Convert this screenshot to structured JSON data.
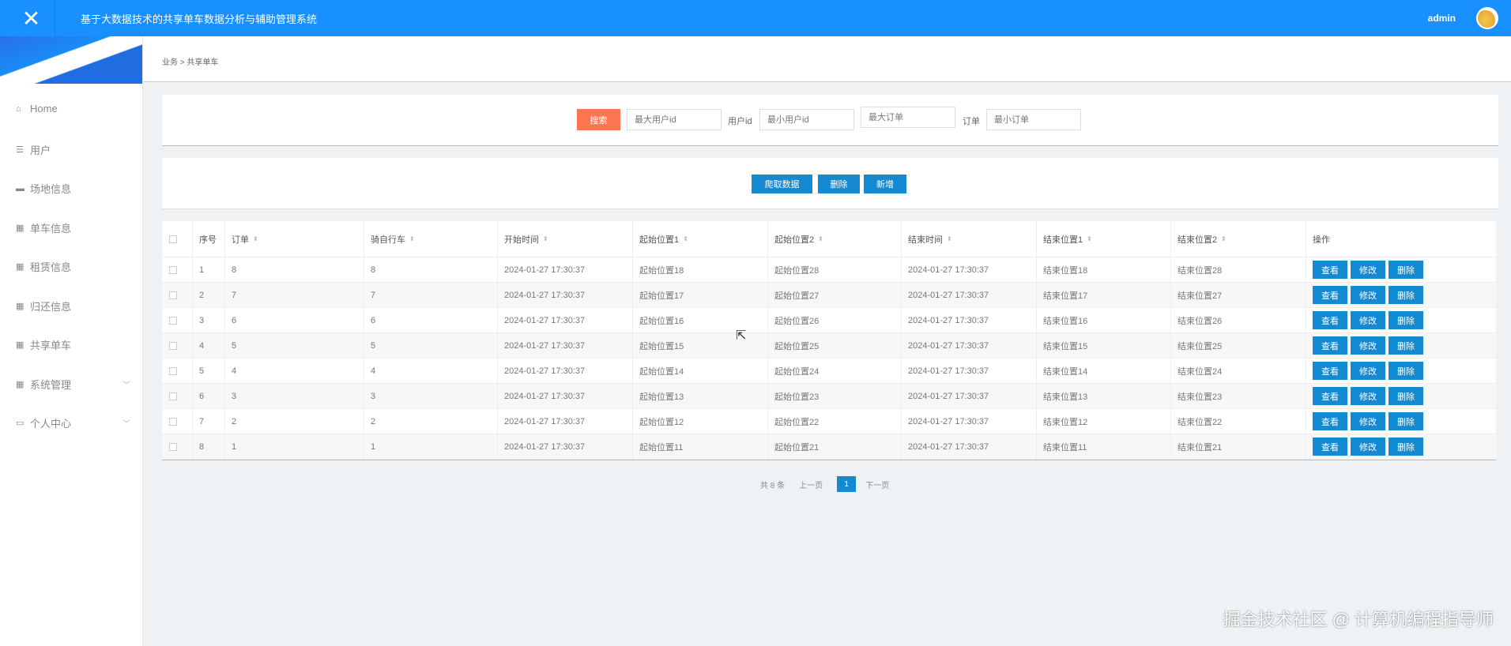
{
  "header": {
    "title": "基于大数据技术的共享单车数据分析与辅助管理系统",
    "user": "admin",
    "close_icon": "close-icon"
  },
  "sidebar": {
    "items": [
      {
        "label": "Home",
        "icon": "home-icon"
      },
      {
        "label": "用户",
        "icon": "sliders-icon"
      },
      {
        "label": "场地信息",
        "icon": "ticket-icon"
      },
      {
        "label": "单车信息",
        "icon": "grid-icon"
      },
      {
        "label": "租赁信息",
        "icon": "grid-icon"
      },
      {
        "label": "归还信息",
        "icon": "grid-icon"
      },
      {
        "label": "共享单车",
        "icon": "grid-icon"
      },
      {
        "label": "系统管理",
        "icon": "grid-icon",
        "expandable": true
      },
      {
        "label": "个人中心",
        "icon": "wallet-icon",
        "expandable": true
      }
    ]
  },
  "breadcrumb": "业务 > 共享单车",
  "search": {
    "button": "搜索",
    "max_user_placeholder": "最大用户id",
    "user_label": "用户id",
    "min_user_placeholder": "最小用户id",
    "max_order_placeholder": "最大订单",
    "order_label": "订单",
    "min_order_placeholder": "最小订单"
  },
  "toolbar": {
    "crawl": "爬取数据",
    "delete": "删除",
    "add": "新增"
  },
  "table": {
    "columns": [
      "序号",
      "订单",
      "骑自行车",
      "开始时间",
      "起始位置1",
      "起始位置2",
      "结束时间",
      "结束位置1",
      "结束位置2",
      "操作"
    ],
    "actions": [
      "查看",
      "修改",
      "删除"
    ],
    "rows": [
      [
        "1",
        "8",
        "8",
        "2024-01-27 17:30:37",
        "起始位置18",
        "起始位置28",
        "2024-01-27 17:30:37",
        "结束位置18",
        "结束位置28"
      ],
      [
        "2",
        "7",
        "7",
        "2024-01-27 17:30:37",
        "起始位置17",
        "起始位置27",
        "2024-01-27 17:30:37",
        "结束位置17",
        "结束位置27"
      ],
      [
        "3",
        "6",
        "6",
        "2024-01-27 17:30:37",
        "起始位置16",
        "起始位置26",
        "2024-01-27 17:30:37",
        "结束位置16",
        "结束位置26"
      ],
      [
        "4",
        "5",
        "5",
        "2024-01-27 17:30:37",
        "起始位置15",
        "起始位置25",
        "2024-01-27 17:30:37",
        "结束位置15",
        "结束位置25"
      ],
      [
        "5",
        "4",
        "4",
        "2024-01-27 17:30:37",
        "起始位置14",
        "起始位置24",
        "2024-01-27 17:30:37",
        "结束位置14",
        "结束位置24"
      ],
      [
        "6",
        "3",
        "3",
        "2024-01-27 17:30:37",
        "起始位置13",
        "起始位置23",
        "2024-01-27 17:30:37",
        "结束位置13",
        "结束位置23"
      ],
      [
        "7",
        "2",
        "2",
        "2024-01-27 17:30:37",
        "起始位置12",
        "起始位置22",
        "2024-01-27 17:30:37",
        "结束位置12",
        "结束位置22"
      ],
      [
        "8",
        "1",
        "1",
        "2024-01-27 17:30:37",
        "起始位置11",
        "起始位置21",
        "2024-01-27 17:30:37",
        "结束位置11",
        "结束位置21"
      ]
    ]
  },
  "pagination": {
    "total": "共 8 条",
    "prev": "上一页",
    "current": "1",
    "next": "下一页"
  },
  "watermark": "掘金技术社区 @ 计算机编程指导师",
  "colors": {
    "header": "#1890ff",
    "search_button": "#fe7552",
    "action_button": "#1589d1"
  }
}
